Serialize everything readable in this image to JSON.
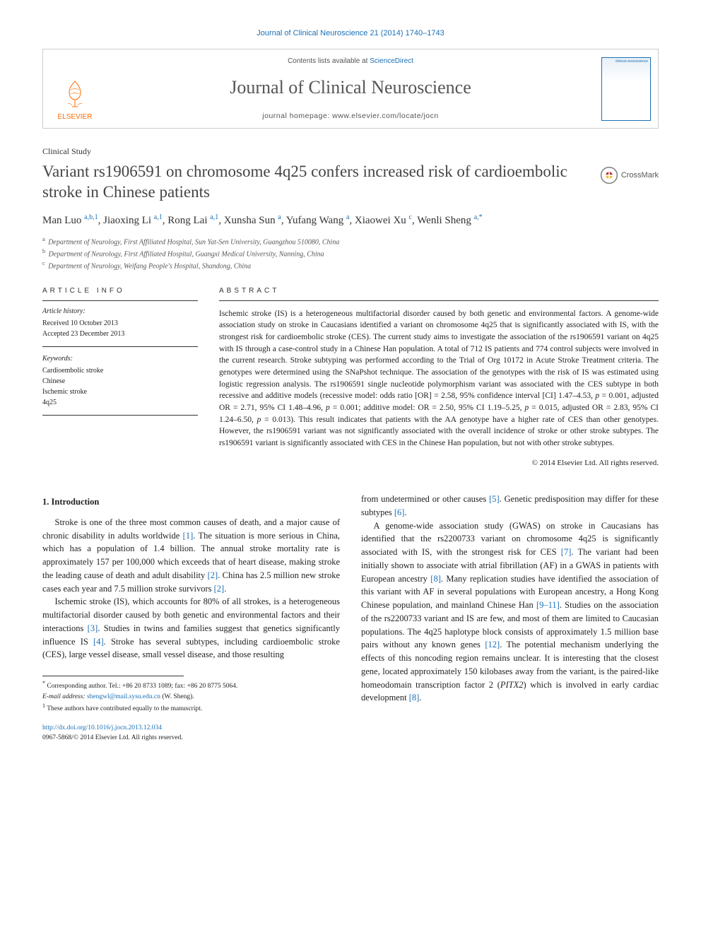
{
  "citation": "Journal of Clinical Neuroscience 21 (2014) 1740–1743",
  "header": {
    "contents_prefix": "Contents lists available at ",
    "contents_link": "ScienceDirect",
    "journal_name": "Journal of Clinical Neuroscience",
    "homepage_prefix": "journal homepage: ",
    "homepage_url": "www.elsevier.com/locate/jocn",
    "elsevier_label": "ELSEVIER",
    "cover_text": "clinical neuroscience",
    "crossmark_label": "CrossMark"
  },
  "article": {
    "type": "Clinical Study",
    "title": "Variant rs1906591 on chromosome 4q25 confers increased risk of cardioembolic stroke in Chinese patients",
    "authors_html": "Man Luo <sup>a,b,1</sup>, Jiaoxing Li <sup>a,1</sup>, Rong Lai <sup>a,1</sup>, Xunsha Sun <sup>a</sup>, Yufang Wang <sup>a</sup>, Xiaowei Xu <sup>c</sup>, Wenli Sheng <sup>a,<span class=\"star\">*</span></sup>",
    "affiliations": [
      {
        "sup": "a",
        "text": "Department of Neurology, First Affiliated Hospital, Sun Yat-Sen University, Guangzhou 510080, China"
      },
      {
        "sup": "b",
        "text": "Department of Neurology, First Affiliated Hospital, Guangxi Medical University, Nanning, China"
      },
      {
        "sup": "c",
        "text": "Department of Neurology, Weifang People's Hospital, Shandong, China"
      }
    ]
  },
  "info": {
    "header": "article info",
    "history_label": "Article history:",
    "received": "Received 10 October 2013",
    "accepted": "Accepted 23 December 2013",
    "keywords_label": "Keywords:",
    "keywords": [
      "Cardioembolic stroke",
      "Chinese",
      "Ischemic stroke",
      "4q25"
    ]
  },
  "abstract": {
    "header": "abstract",
    "text": "Ischemic stroke (IS) is a heterogeneous multifactorial disorder caused by both genetic and environmental factors. A genome-wide association study on stroke in Caucasians identified a variant on chromosome 4q25 that is significantly associated with IS, with the strongest risk for cardioembolic stroke (CES). The current study aims to investigate the association of the rs1906591 variant on 4q25 with IS through a case-control study in a Chinese Han population. A total of 712 IS patients and 774 control subjects were involved in the current research. Stroke subtyping was performed according to the Trial of Org 10172 in Acute Stroke Treatment criteria. The genotypes were determined using the SNaPshot technique. The association of the genotypes with the risk of IS was estimated using logistic regression analysis. The rs1906591 single nucleotide polymorphism variant was associated with the CES subtype in both recessive and additive models (recessive model: odds ratio [OR] = 2.58, 95% confidence interval [CI] 1.47–4.53, p = 0.001, adjusted OR = 2.71, 95% CI 1.48–4.96, p = 0.001; additive model: OR = 2.50, 95% CI 1.19–5.25, p = 0.015, adjusted OR = 2.83, 95% CI 1.24–6.50, p = 0.013). This result indicates that patients with the AA genotype have a higher rate of CES than other genotypes. However, the rs1906591 variant was not significantly associated with the overall incidence of stroke or other stroke subtypes. The rs1906591 variant is significantly associated with CES in the Chinese Han population, but not with other stroke subtypes.",
    "copyright": "© 2014 Elsevier Ltd. All rights reserved."
  },
  "body": {
    "section1_heading": "1. Introduction",
    "p1": "Stroke is one of the three most common causes of death, and a major cause of chronic disability in adults worldwide [1]. The situation is more serious in China, which has a population of 1.4 billion. The annual stroke mortality rate is approximately 157 per 100,000 which exceeds that of heart disease, making stroke the leading cause of death and adult disability [2]. China has 2.5 million new stroke cases each year and 7.5 million stroke survivors [2].",
    "p2": "Ischemic stroke (IS), which accounts for 80% of all strokes, is a heterogeneous multifactorial disorder caused by both genetic and environmental factors and their interactions [3]. Studies in twins and families suggest that genetics significantly influence IS [4]. Stroke has several subtypes, including cardioembolic stroke (CES), large vessel disease, small vessel disease, and those resulting",
    "p3": "from undetermined or other causes [5]. Genetic predisposition may differ for these subtypes [6].",
    "p4": "A genome-wide association study (GWAS) on stroke in Caucasians has identified that the rs2200733 variant on chromosome 4q25 is significantly associated with IS, with the strongest risk for CES [7]. The variant had been initially shown to associate with atrial fibrillation (AF) in a GWAS in patients with European ancestry [8]. Many replication studies have identified the association of this variant with AF in several populations with European ancestry, a Hong Kong Chinese population, and mainland Chinese Han [9–11]. Studies on the association of the rs2200733 variant and IS are few, and most of them are limited to Caucasian populations. The 4q25 haplotype block consists of approximately 1.5 million base pairs without any known genes [12]. The potential mechanism underlying the effects of this noncoding region remains unclear. It is interesting that the closest gene, located approximately 150 kilobases away from the variant, is the paired-like homeodomain transcription factor 2 (PITX2) which is involved in early cardiac development [8]."
  },
  "footnotes": {
    "corr_symbol": "*",
    "corr": "Corresponding author. Tel.: +86 20 8733 1089; fax: +86 20 8775 5064.",
    "email_label": "E-mail address:",
    "email": "shengwl@mail.sysu.edu.cn",
    "email_suffix": "(W. Sheng).",
    "note1_sup": "1",
    "note1": "These authors have contributed equally to the manuscript."
  },
  "doi": {
    "url": "http://dx.doi.org/10.1016/j.jocn.2013.12.034",
    "issn": "0967-5868/© 2014 Elsevier Ltd. All rights reserved."
  },
  "colors": {
    "link": "#1a6fb5",
    "elsevier": "#ff6b00",
    "text": "#222222",
    "muted": "#555555",
    "border": "#cccccc"
  }
}
